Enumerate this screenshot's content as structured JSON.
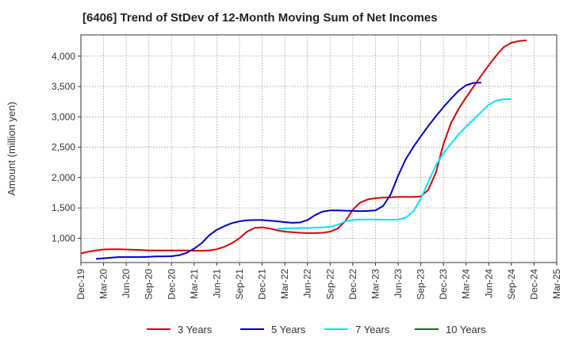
{
  "chart_data": {
    "type": "line",
    "title": "[6406]  Trend of StDev of 12-Month Moving Sum of Net Incomes",
    "ylabel": "Amount (million yen)",
    "xlabel": "",
    "ylim": [
      600,
      4350
    ],
    "yticks": [
      1000,
      1500,
      2000,
      2500,
      3000,
      3500,
      4000
    ],
    "ytick_labels": [
      "1,000",
      "1,500",
      "2,000",
      "2,500",
      "3,000",
      "3,500",
      "4,000"
    ],
    "xticks": [
      "Dec-19",
      "Mar-20",
      "Jun-20",
      "Sep-20",
      "Dec-20",
      "Mar-21",
      "Jun-21",
      "Sep-21",
      "Dec-21",
      "Mar-22",
      "Jun-22",
      "Sep-22",
      "Dec-22",
      "Mar-23",
      "Jun-23",
      "Sep-23",
      "Dec-23",
      "Mar-24",
      "Jun-24",
      "Sep-24",
      "Dec-24",
      "Mar-25"
    ],
    "grid": true,
    "legend_position": "bottom",
    "series": [
      {
        "name": "3 Years",
        "color": "#e00000",
        "start": 0,
        "values": [
          750,
          780,
          800,
          815,
          820,
          820,
          815,
          810,
          805,
          800,
          800,
          800,
          800,
          800,
          800,
          795,
          795,
          800,
          820,
          860,
          920,
          1000,
          1110,
          1170,
          1180,
          1160,
          1130,
          1110,
          1100,
          1090,
          1085,
          1085,
          1090,
          1110,
          1160,
          1280,
          1470,
          1590,
          1640,
          1660,
          1670,
          1675,
          1680,
          1680,
          1680,
          1690,
          1800,
          2080,
          2550,
          2900,
          3130,
          3320,
          3500,
          3680,
          3850,
          4010,
          4150,
          4220,
          4250,
          4260
        ]
      },
      {
        "name": "5 Years",
        "color": "#0000cc",
        "start": 2,
        "values": [
          660,
          670,
          680,
          690,
          690,
          690,
          690,
          695,
          700,
          700,
          705,
          720,
          760,
          830,
          920,
          1050,
          1140,
          1200,
          1250,
          1280,
          1295,
          1300,
          1300,
          1290,
          1280,
          1265,
          1255,
          1260,
          1300,
          1380,
          1440,
          1460,
          1460,
          1455,
          1450,
          1445,
          1450,
          1460,
          1530,
          1720,
          2030,
          2300,
          2500,
          2680,
          2850,
          3010,
          3160,
          3300,
          3430,
          3520,
          3560,
          3565
        ]
      },
      {
        "name": "7 Years",
        "color": "#00e5ff",
        "start": 26,
        "values": [
          1160,
          1160,
          1165,
          1170,
          1170,
          1175,
          1180,
          1190,
          1220,
          1280,
          1300,
          1310,
          1310,
          1310,
          1305,
          1305,
          1310,
          1340,
          1440,
          1650,
          1930,
          2200,
          2400,
          2560,
          2710,
          2840,
          2960,
          3080,
          3200,
          3270,
          3290,
          3295
        ]
      },
      {
        "name": "10 Years",
        "color": "#008000",
        "start": 0,
        "values": []
      }
    ]
  }
}
